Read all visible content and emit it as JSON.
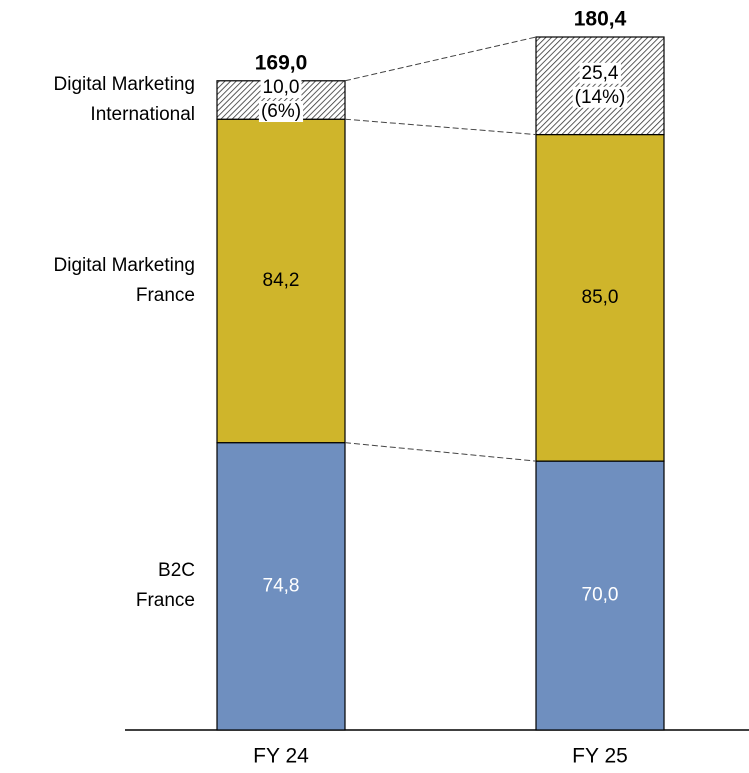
{
  "chart_data": {
    "type": "stacked_bar",
    "categories": [
      "FY 24",
      "FY 25"
    ],
    "series": [
      {
        "name": "B2C\nFrance",
        "color": "#6f8fbf",
        "label_color": "#ffffff",
        "values": [
          74.8,
          70.0
        ],
        "value_labels": [
          "74,8",
          "70,0"
        ]
      },
      {
        "name": "Digital Marketing\nFrance",
        "color": "#cfb52b",
        "label_color": "#000000",
        "values": [
          84.2,
          85.0
        ],
        "value_labels": [
          "84,2",
          "85,0"
        ]
      },
      {
        "name": "Digital Marketing\nInternational",
        "color": "#ffffff",
        "hatch": true,
        "label_color": "#000000",
        "values": [
          10.0,
          25.4
        ],
        "value_labels": [
          "10,0",
          "25,4"
        ],
        "share_labels": [
          "(6%)",
          "(14%)"
        ]
      }
    ],
    "totals": [
      169.0,
      180.4
    ],
    "total_labels": [
      "169,0",
      "180,4"
    ]
  }
}
